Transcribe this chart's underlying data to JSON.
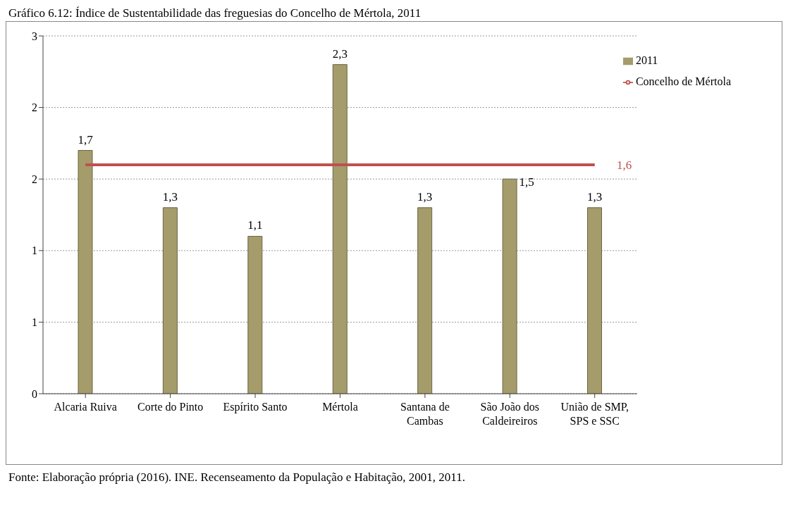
{
  "chart_data": {
    "type": "bar",
    "title": "Gráfico 6.12: Índice de Sustentabilidade das freguesias do Concelho de Mértola, 2011",
    "categories": [
      "Alcaria Ruiva",
      "Corte do Pinto",
      "Espírito Santo",
      "Mértola",
      "Santana de Cambas",
      "São João dos Caldeireiros",
      "União de SMP, SPS e SSC"
    ],
    "series": [
      {
        "name": "2011",
        "color": "#a59c6c",
        "values": [
          1.7,
          1.3,
          1.1,
          2.3,
          1.3,
          1.5,
          1.3
        ],
        "value_labels": [
          "1,7",
          "1,3",
          "1,1",
          "2,3",
          "1,3",
          "1,5",
          "1,3"
        ]
      },
      {
        "name": "Concelho de Mértola",
        "type": "line",
        "color": "#c0504d",
        "values": [
          1.6,
          1.6,
          1.6,
          1.6,
          1.6,
          1.6,
          1.6
        ],
        "value_labels": [
          null,
          null,
          null,
          null,
          null,
          null,
          "1,6"
        ]
      }
    ],
    "ylim": [
      0,
      2.5
    ],
    "yticks": [
      0,
      {
        "value": 0.5,
        "label": "1"
      },
      {
        "value": 1,
        "label": "1"
      },
      {
        "value": 1.5,
        "label": "2"
      },
      {
        "value": 2,
        "label": "2"
      },
      {
        "value": 2.5,
        "label": "3"
      }
    ],
    "grid": "y",
    "legend": "top right",
    "annotations": [
      "Fonte: Elaboração própria (2016). INE. Recenseamento da População e Habitação, 2001, 2011."
    ]
  }
}
